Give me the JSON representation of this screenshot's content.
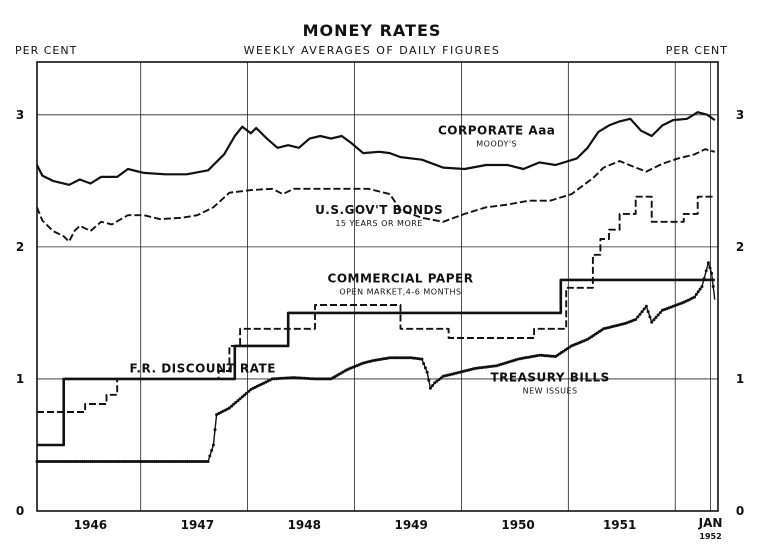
{
  "chart_data": {
    "type": "line",
    "title": "MONEY RATES",
    "subtitle": "WEEKLY AVERAGES OF DAILY FIGURES",
    "ylabel_left": "PER CENT",
    "ylabel_right": "PER CENT",
    "ylim": [
      0,
      3.4
    ],
    "xlim": [
      1945.7,
      1952.07
    ],
    "y_ticks": [
      0,
      1,
      2,
      3
    ],
    "y_tick_labels": [
      "0",
      "1",
      "2",
      "3"
    ],
    "x_tick_labels": [
      {
        "label": "1946",
        "x": 1946.2
      },
      {
        "label": "1947",
        "x": 1947.2
      },
      {
        "label": "1948",
        "x": 1948.2
      },
      {
        "label": "1949",
        "x": 1949.2
      },
      {
        "label": "1950",
        "x": 1950.2
      },
      {
        "label": "1951",
        "x": 1951.15
      }
    ],
    "x_end_label": [
      "JAN",
      "1952"
    ],
    "grid": true,
    "series": [
      {
        "name": "CORPORATE Aaa",
        "note": "MOODY'S",
        "style": "solid",
        "points": [
          [
            1945.7,
            2.62
          ],
          [
            1945.75,
            2.54
          ],
          [
            1945.85,
            2.5
          ],
          [
            1946.0,
            2.47
          ],
          [
            1946.1,
            2.51
          ],
          [
            1946.2,
            2.48
          ],
          [
            1946.3,
            2.53
          ],
          [
            1946.45,
            2.53
          ],
          [
            1946.55,
            2.59
          ],
          [
            1946.7,
            2.56
          ],
          [
            1946.9,
            2.55
          ],
          [
            1947.1,
            2.55
          ],
          [
            1947.3,
            2.58
          ],
          [
            1947.45,
            2.7
          ],
          [
            1947.55,
            2.84
          ],
          [
            1947.62,
            2.91
          ],
          [
            1947.7,
            2.86
          ],
          [
            1947.75,
            2.9
          ],
          [
            1947.85,
            2.82
          ],
          [
            1947.95,
            2.75
          ],
          [
            1948.05,
            2.77
          ],
          [
            1948.15,
            2.75
          ],
          [
            1948.25,
            2.82
          ],
          [
            1948.35,
            2.84
          ],
          [
            1948.45,
            2.82
          ],
          [
            1948.55,
            2.84
          ],
          [
            1948.65,
            2.78
          ],
          [
            1948.75,
            2.71
          ],
          [
            1948.9,
            2.72
          ],
          [
            1949.0,
            2.71
          ],
          [
            1949.1,
            2.68
          ],
          [
            1949.3,
            2.66
          ],
          [
            1949.5,
            2.6
          ],
          [
            1949.7,
            2.59
          ],
          [
            1949.9,
            2.62
          ],
          [
            1950.1,
            2.62
          ],
          [
            1950.25,
            2.59
          ],
          [
            1950.4,
            2.64
          ],
          [
            1950.55,
            2.62
          ],
          [
            1950.75,
            2.67
          ],
          [
            1950.85,
            2.75
          ],
          [
            1950.95,
            2.87
          ],
          [
            1951.05,
            2.92
          ],
          [
            1951.15,
            2.95
          ],
          [
            1951.25,
            2.97
          ],
          [
            1951.35,
            2.88
          ],
          [
            1951.45,
            2.84
          ],
          [
            1951.55,
            2.92
          ],
          [
            1951.65,
            2.96
          ],
          [
            1951.78,
            2.97
          ],
          [
            1951.88,
            3.02
          ],
          [
            1951.97,
            3.0
          ],
          [
            1952.04,
            2.96
          ]
        ]
      },
      {
        "name": "U.S.GOV'T BONDS",
        "note": "15 YEARS OR MORE",
        "style": "dashed",
        "points": [
          [
            1945.7,
            2.3
          ],
          [
            1945.75,
            2.2
          ],
          [
            1945.85,
            2.12
          ],
          [
            1945.95,
            2.08
          ],
          [
            1946.0,
            2.04
          ],
          [
            1946.05,
            2.12
          ],
          [
            1946.1,
            2.16
          ],
          [
            1946.2,
            2.12
          ],
          [
            1946.3,
            2.19
          ],
          [
            1946.4,
            2.17
          ],
          [
            1946.55,
            2.24
          ],
          [
            1946.7,
            2.24
          ],
          [
            1946.85,
            2.21
          ],
          [
            1947.05,
            2.22
          ],
          [
            1947.2,
            2.24
          ],
          [
            1947.35,
            2.3
          ],
          [
            1947.5,
            2.41
          ],
          [
            1947.7,
            2.43
          ],
          [
            1947.9,
            2.44
          ],
          [
            1948.0,
            2.4
          ],
          [
            1948.1,
            2.44
          ],
          [
            1948.5,
            2.44
          ],
          [
            1948.8,
            2.44
          ],
          [
            1949.0,
            2.4
          ],
          [
            1949.1,
            2.28
          ],
          [
            1949.3,
            2.22
          ],
          [
            1949.5,
            2.19
          ],
          [
            1949.7,
            2.25
          ],
          [
            1949.9,
            2.3
          ],
          [
            1950.1,
            2.32
          ],
          [
            1950.3,
            2.35
          ],
          [
            1950.5,
            2.35
          ],
          [
            1950.7,
            2.4
          ],
          [
            1950.8,
            2.46
          ],
          [
            1950.9,
            2.52
          ],
          [
            1951.0,
            2.6
          ],
          [
            1951.15,
            2.65
          ],
          [
            1951.3,
            2.6
          ],
          [
            1951.4,
            2.57
          ],
          [
            1951.55,
            2.63
          ],
          [
            1951.7,
            2.67
          ],
          [
            1951.85,
            2.7
          ],
          [
            1951.95,
            2.74
          ],
          [
            1952.04,
            2.72
          ]
        ]
      },
      {
        "name": "COMMERCIAL PAPER",
        "note": "OPEN MARKET, 4-6 MONTHS",
        "style": "dashed",
        "points": [
          [
            1945.7,
            0.75
          ],
          [
            1946.15,
            0.75
          ],
          [
            1946.15,
            0.81
          ],
          [
            1946.35,
            0.81
          ],
          [
            1946.35,
            0.88
          ],
          [
            1946.45,
            0.88
          ],
          [
            1946.45,
            1.0
          ],
          [
            1947.4,
            1.0
          ],
          [
            1947.4,
            1.06
          ],
          [
            1947.5,
            1.06
          ],
          [
            1947.5,
            1.25
          ],
          [
            1947.6,
            1.25
          ],
          [
            1947.6,
            1.38
          ],
          [
            1948.3,
            1.38
          ],
          [
            1948.3,
            1.56
          ],
          [
            1949.1,
            1.56
          ],
          [
            1949.1,
            1.38
          ],
          [
            1949.55,
            1.38
          ],
          [
            1949.55,
            1.31
          ],
          [
            1950.35,
            1.31
          ],
          [
            1950.35,
            1.38
          ],
          [
            1950.65,
            1.38
          ],
          [
            1950.65,
            1.69
          ],
          [
            1950.9,
            1.69
          ],
          [
            1950.9,
            1.94
          ],
          [
            1950.97,
            1.94
          ],
          [
            1950.97,
            2.06
          ],
          [
            1951.05,
            2.06
          ],
          [
            1951.05,
            2.13
          ],
          [
            1951.15,
            2.13
          ],
          [
            1951.15,
            2.25
          ],
          [
            1951.3,
            2.25
          ],
          [
            1951.3,
            2.38
          ],
          [
            1951.45,
            2.38
          ],
          [
            1951.45,
            2.19
          ],
          [
            1951.75,
            2.19
          ],
          [
            1951.75,
            2.25
          ],
          [
            1951.88,
            2.25
          ],
          [
            1951.88,
            2.38
          ],
          [
            1952.04,
            2.38
          ]
        ]
      },
      {
        "name": "F.R. DISCOUNT RATE",
        "note": "",
        "style": "solid-thick",
        "points": [
          [
            1945.7,
            0.5
          ],
          [
            1945.95,
            0.5
          ],
          [
            1945.95,
            1.0
          ],
          [
            1947.55,
            1.0
          ],
          [
            1947.55,
            1.25
          ],
          [
            1948.05,
            1.25
          ],
          [
            1948.05,
            1.5
          ],
          [
            1950.6,
            1.5
          ],
          [
            1950.6,
            1.75
          ],
          [
            1952.04,
            1.75
          ]
        ]
      },
      {
        "name": "TREASURY BILLS",
        "note": "NEW ISSUES",
        "style": "dotted-line",
        "points": [
          [
            1945.7,
            0.375
          ],
          [
            1947.3,
            0.375
          ],
          [
            1947.35,
            0.5
          ],
          [
            1947.38,
            0.73
          ],
          [
            1947.5,
            0.78
          ],
          [
            1947.6,
            0.85
          ],
          [
            1947.7,
            0.92
          ],
          [
            1947.8,
            0.96
          ],
          [
            1947.9,
            1.0
          ],
          [
            1948.1,
            1.01
          ],
          [
            1948.3,
            1.0
          ],
          [
            1948.45,
            1.0
          ],
          [
            1948.6,
            1.07
          ],
          [
            1948.75,
            1.12
          ],
          [
            1948.85,
            1.14
          ],
          [
            1949.0,
            1.16
          ],
          [
            1949.2,
            1.16
          ],
          [
            1949.3,
            1.15
          ],
          [
            1949.35,
            1.05
          ],
          [
            1949.38,
            0.93
          ],
          [
            1949.42,
            0.97
          ],
          [
            1949.5,
            1.02
          ],
          [
            1949.7,
            1.06
          ],
          [
            1949.8,
            1.08
          ],
          [
            1950.0,
            1.1
          ],
          [
            1950.2,
            1.15
          ],
          [
            1950.4,
            1.18
          ],
          [
            1950.55,
            1.17
          ],
          [
            1950.7,
            1.25
          ],
          [
            1950.85,
            1.3
          ],
          [
            1951.0,
            1.38
          ],
          [
            1951.1,
            1.4
          ],
          [
            1951.2,
            1.42
          ],
          [
            1951.3,
            1.45
          ],
          [
            1951.4,
            1.55
          ],
          [
            1951.45,
            1.43
          ],
          [
            1951.55,
            1.52
          ],
          [
            1951.65,
            1.55
          ],
          [
            1951.75,
            1.58
          ],
          [
            1951.85,
            1.62
          ],
          [
            1951.92,
            1.7
          ],
          [
            1951.98,
            1.88
          ],
          [
            1952.01,
            1.8
          ],
          [
            1952.04,
            1.6
          ]
        ]
      }
    ],
    "labels": [
      {
        "text": "CORPORATE Aaa",
        "sub": "MOODY'S",
        "x": 1950.0,
        "y": 2.85
      },
      {
        "text": "U.S.GOV'T BONDS",
        "sub": "15 YEARS OR MORE",
        "x": 1948.9,
        "y": 2.25
      },
      {
        "text": "COMMERCIAL PAPER",
        "sub": "OPEN MARKET,4-6 MONTHS",
        "x": 1949.1,
        "y": 1.73
      },
      {
        "text": "F.R. DISCOUNT RATE",
        "sub": "",
        "x": 1947.25,
        "y": 1.05
      },
      {
        "text": "TREASURY BILLS",
        "sub": "NEW ISSUES",
        "x": 1950.5,
        "y": 0.98
      }
    ]
  }
}
